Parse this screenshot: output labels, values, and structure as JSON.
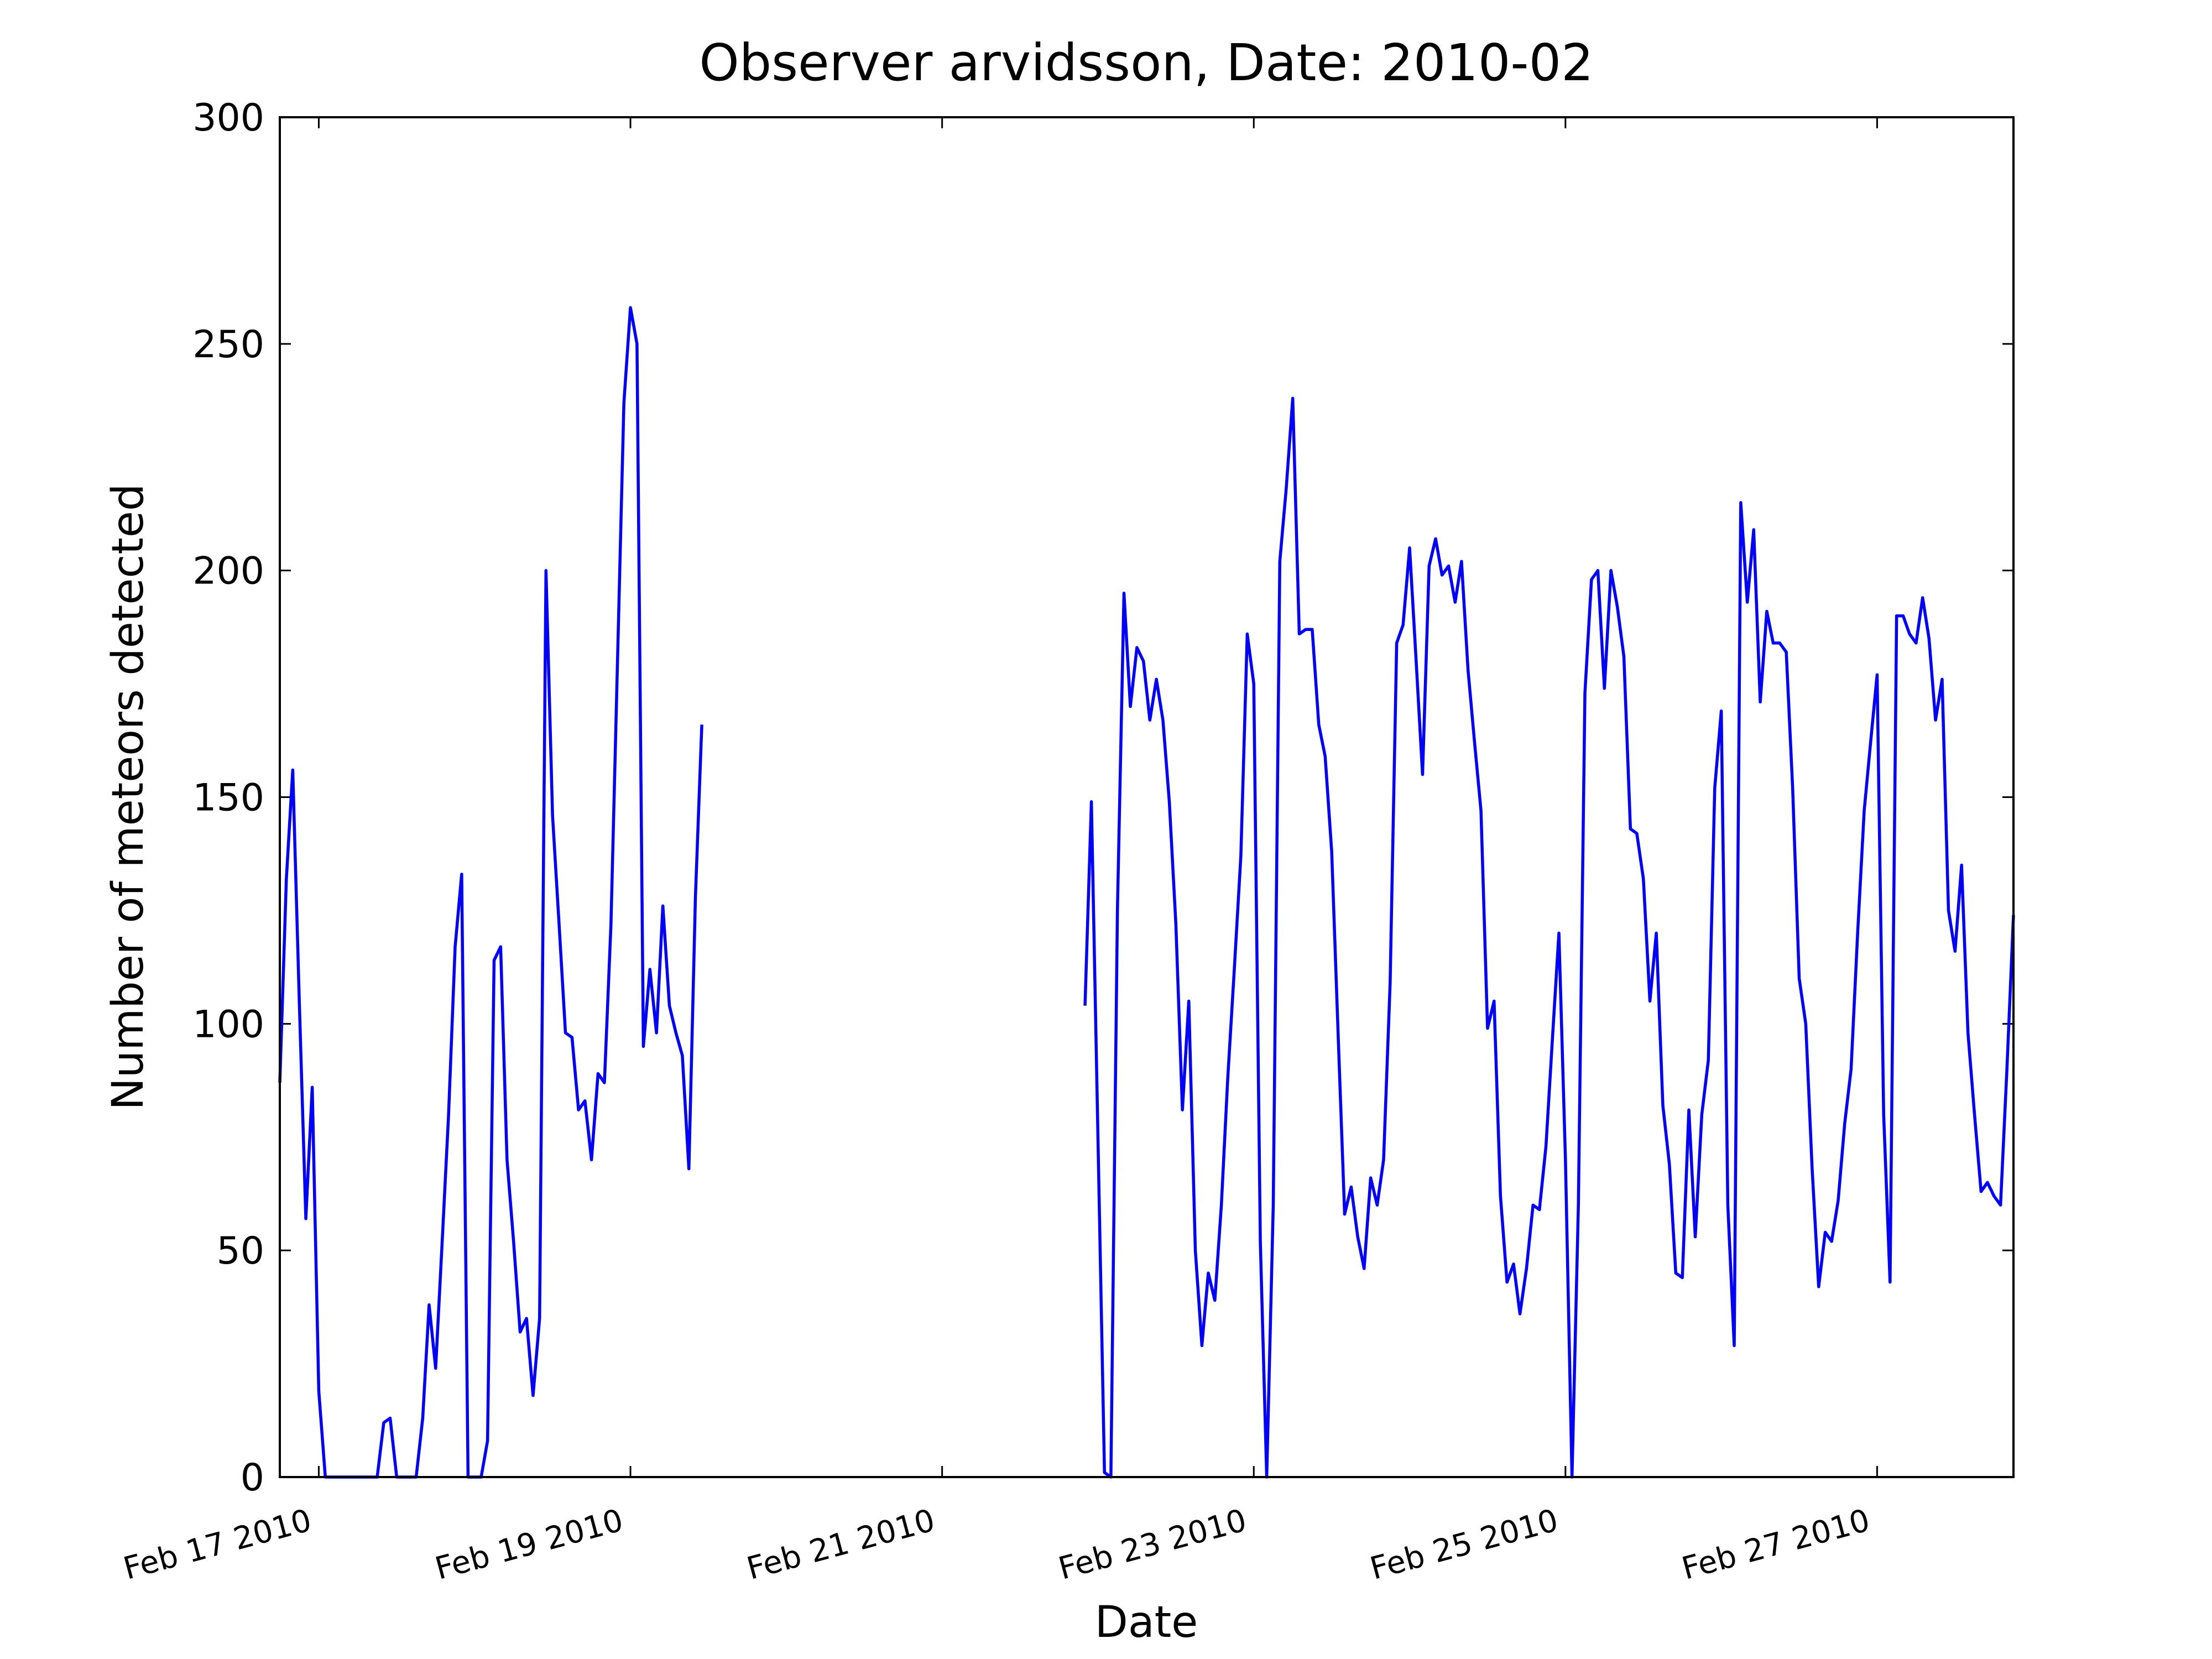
{
  "chart_data": {
    "type": "line",
    "title": "Observer arvidsson, Date: 2010-02",
    "xlabel": "Date",
    "ylabel": "Number of meteors detected",
    "color": "#0000ff",
    "grid": false,
    "xlim": [
      16.75,
      27.875
    ],
    "ylim": [
      0,
      300
    ],
    "xticks": [
      {
        "value": 17,
        "label": "Feb 17 2010"
      },
      {
        "value": 19,
        "label": "Feb 19 2010"
      },
      {
        "value": 21,
        "label": "Feb 21 2010"
      },
      {
        "value": 23,
        "label": "Feb 23 2010"
      },
      {
        "value": 25,
        "label": "Feb 25 2010"
      },
      {
        "value": 27,
        "label": "Feb 27 2010"
      }
    ],
    "yticks": [
      0,
      50,
      100,
      150,
      200,
      250,
      300
    ],
    "x": [
      16.75,
      16.792,
      16.833,
      16.875,
      16.917,
      16.958,
      17,
      17.042,
      17.083,
      17.125,
      17.167,
      17.208,
      17.25,
      17.292,
      17.333,
      17.375,
      17.417,
      17.458,
      17.5,
      17.542,
      17.583,
      17.625,
      17.667,
      17.708,
      17.75,
      17.792,
      17.833,
      17.875,
      17.917,
      17.958,
      18,
      18.042,
      18.083,
      18.125,
      18.167,
      18.208,
      18.25,
      18.292,
      18.333,
      18.375,
      18.417,
      18.458,
      18.5,
      18.542,
      18.583,
      18.625,
      18.667,
      18.708,
      18.75,
      18.792,
      18.833,
      18.875,
      18.917,
      18.958,
      19,
      19.042,
      19.083,
      19.125,
      19.167,
      19.208,
      19.25,
      19.292,
      19.333,
      19.375,
      19.417,
      19.458,
      19.5,
      21.917,
      21.958,
      22,
      22.042,
      22.083,
      22.125,
      22.167,
      22.208,
      22.25,
      22.292,
      22.333,
      22.375,
      22.417,
      22.458,
      22.5,
      22.542,
      22.583,
      22.625,
      22.667,
      22.708,
      22.75,
      22.792,
      22.833,
      22.875,
      22.917,
      22.958,
      23,
      23.042,
      23.083,
      23.125,
      23.167,
      23.208,
      23.25,
      23.292,
      23.333,
      23.375,
      23.417,
      23.458,
      23.5,
      23.542,
      23.583,
      23.625,
      23.667,
      23.708,
      23.75,
      23.792,
      23.833,
      23.875,
      23.917,
      23.958,
      24,
      24.042,
      24.083,
      24.125,
      24.167,
      24.208,
      24.25,
      24.292,
      24.333,
      24.375,
      24.417,
      24.458,
      24.5,
      24.542,
      24.583,
      24.625,
      24.667,
      24.708,
      24.75,
      24.792,
      24.833,
      24.875,
      24.917,
      24.958,
      25,
      25.042,
      25.083,
      25.125,
      25.167,
      25.208,
      25.25,
      25.292,
      25.333,
      25.375,
      25.417,
      25.458,
      25.5,
      25.542,
      25.583,
      25.625,
      25.667,
      25.708,
      25.75,
      25.792,
      25.833,
      25.875,
      25.917,
      25.958,
      26,
      26.042,
      26.083,
      26.125,
      26.167,
      26.208,
      26.25,
      26.292,
      26.333,
      26.375,
      26.417,
      26.458,
      26.5,
      26.542,
      26.583,
      26.625,
      26.667,
      26.708,
      26.75,
      26.792,
      26.833,
      26.875,
      26.917,
      26.958,
      27,
      27.042,
      27.083,
      27.125,
      27.167,
      27.208,
      27.25,
      27.292,
      27.333,
      27.375,
      27.417,
      27.458,
      27.5,
      27.542,
      27.583,
      27.625,
      27.667,
      27.708,
      27.75,
      27.792,
      27.833,
      27.875
    ],
    "values": [
      87,
      132,
      156,
      105,
      57,
      86,
      19,
      0,
      0,
      0,
      0,
      0,
      0,
      0,
      0,
      0,
      12,
      13,
      0,
      0,
      0,
      0,
      13,
      38,
      24,
      52,
      80,
      117,
      133,
      0,
      0,
      0,
      8,
      114,
      117,
      70,
      52,
      32,
      35,
      18,
      35,
      200,
      146,
      122,
      98,
      97,
      81,
      83,
      70,
      89,
      87,
      122,
      180,
      237,
      258,
      250,
      95,
      112,
      98,
      126,
      104,
      98,
      93,
      68,
      128,
      166,
      null,
      104,
      149,
      75,
      1,
      0,
      125,
      195,
      170,
      183,
      180,
      167,
      176,
      167,
      149,
      122,
      81,
      105,
      50,
      29,
      45,
      39,
      60,
      88,
      112,
      137,
      186,
      175,
      52,
      0,
      60,
      202,
      218,
      238,
      186,
      187,
      187,
      166,
      159,
      138,
      97,
      58,
      64,
      53,
      46,
      66,
      60,
      70,
      109,
      184,
      188,
      205,
      180,
      155,
      201,
      207,
      199,
      201,
      193,
      202,
      178,
      162,
      147,
      99,
      105,
      62,
      43,
      47,
      36,
      46,
      60,
      59,
      73,
      97,
      120,
      70,
      0,
      60,
      173,
      198,
      200,
      174,
      200,
      192,
      181,
      143,
      142,
      132,
      105,
      120,
      82,
      69,
      45,
      44,
      81,
      53,
      80,
      92,
      152,
      169,
      60,
      29,
      215,
      193,
      209,
      171,
      191,
      184,
      184,
      182,
      152,
      110,
      100,
      68,
      42,
      54,
      52,
      61,
      78,
      90,
      120,
      147,
      162,
      177,
      80,
      43,
      190,
      190,
      186,
      184,
      194,
      185,
      167,
      176,
      125,
      116,
      135,
      98,
      80,
      63,
      65,
      62,
      60,
      90,
      124
    ]
  }
}
